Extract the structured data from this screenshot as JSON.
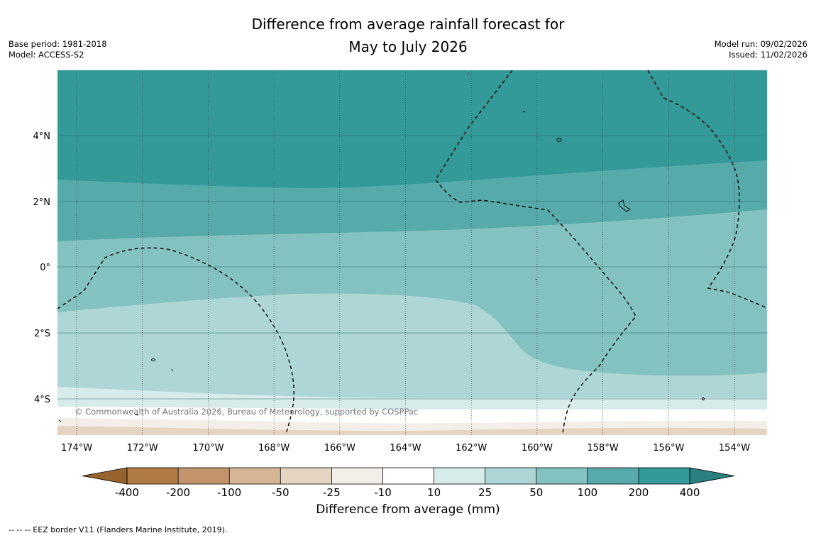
{
  "title": {
    "line1": "Difference from average rainfall forecast for",
    "line2": "May to July 2026"
  },
  "meta": {
    "base_period": "Base period: 1981-2018",
    "model": "Model: ACCESS-S2",
    "model_run": "Model run: 09/02/2026",
    "issued": "Issued: 11/02/2026"
  },
  "map": {
    "lon_labels": [
      "174°W",
      "172°W",
      "170°W",
      "168°W",
      "166°W",
      "164°W",
      "162°W",
      "160°W",
      "158°W",
      "156°W",
      "154°W"
    ],
    "lat_labels": [
      "4°N",
      "2°N",
      "0°",
      "2°S",
      "4°S"
    ],
    "copyright": "© Commonwealth of Australia 2026, Bureau of Meteorology, supported by COSPPac"
  },
  "colorbar": {
    "title": "Difference from average (mm)",
    "tick_labels": [
      "-400",
      "-200",
      "-100",
      "-50",
      "-25",
      "-10",
      "10",
      "25",
      "50",
      "100",
      "200",
      "400"
    ],
    "colors": {
      "under": "#98622e",
      "bins": [
        "#b07a45",
        "#c3946b",
        "#d6b596",
        "#e6d4c3",
        "#f3eee8",
        "#ffffff",
        "#d6ebea",
        "#aed6d6",
        "#84c1c1",
        "#56aaaa",
        "#339999"
      ],
      "over": "#2a7f7f"
    }
  },
  "footnote": "--  --  -- EEZ border V11 (Flanders Marine Institute, 2019)."
}
